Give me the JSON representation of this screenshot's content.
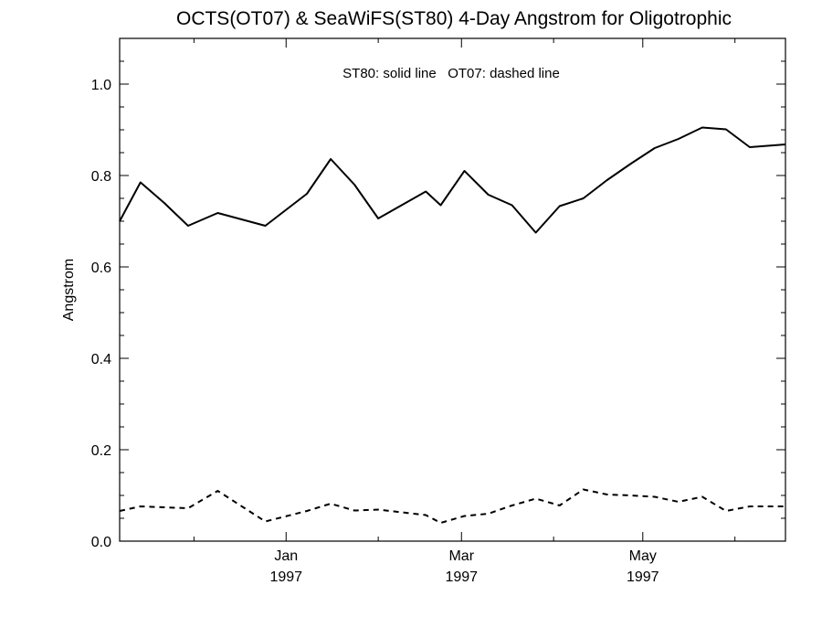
{
  "chart_data": {
    "type": "line",
    "title": "OCTS(OT07) & SeaWiFS(ST80) 4-Day Angstrom for Oligotrophic",
    "ylabel": "Angstrom",
    "xlabel": "",
    "annotation": "ST80: solid line   OT07: dashed line",
    "ylim": [
      0.0,
      1.1
    ],
    "xlim": [
      "1996-11-06",
      "1997-06-18"
    ],
    "yticks": [
      0.0,
      0.2,
      0.4,
      0.6,
      0.8,
      1.0
    ],
    "ytick_labels": [
      "0.0",
      "0.2",
      "0.4",
      "0.6",
      "0.8",
      "1.0"
    ],
    "xticks": [
      {
        "date": "1997-01-01",
        "month": "Jan",
        "year": "1997"
      },
      {
        "date": "1997-03-01",
        "month": "Mar",
        "year": "1997"
      },
      {
        "date": "1997-05-01",
        "month": "May",
        "year": "1997"
      }
    ],
    "grid": false,
    "series": [
      {
        "name": "ST80",
        "style": "solid",
        "color": "#000000",
        "points": [
          {
            "x": "1996-11-06",
            "y": 0.7
          },
          {
            "x": "1996-11-13",
            "y": 0.785
          },
          {
            "x": "1996-11-21",
            "y": 0.74
          },
          {
            "x": "1996-11-29",
            "y": 0.69
          },
          {
            "x": "1996-12-09",
            "y": 0.718
          },
          {
            "x": "1996-12-25",
            "y": 0.69
          },
          {
            "x": "1997-01-08",
            "y": 0.76
          },
          {
            "x": "1997-01-16",
            "y": 0.836
          },
          {
            "x": "1997-01-24",
            "y": 0.78
          },
          {
            "x": "1997-02-01",
            "y": 0.706
          },
          {
            "x": "1997-02-17",
            "y": 0.765
          },
          {
            "x": "1997-02-22",
            "y": 0.735
          },
          {
            "x": "1997-03-02",
            "y": 0.81
          },
          {
            "x": "1997-03-10",
            "y": 0.758
          },
          {
            "x": "1997-03-18",
            "y": 0.735
          },
          {
            "x": "1997-03-26",
            "y": 0.675
          },
          {
            "x": "1997-04-03",
            "y": 0.733
          },
          {
            "x": "1997-04-11",
            "y": 0.75
          },
          {
            "x": "1997-04-19",
            "y": 0.79
          },
          {
            "x": "1997-04-27",
            "y": 0.826
          },
          {
            "x": "1997-05-05",
            "y": 0.86
          },
          {
            "x": "1997-05-13",
            "y": 0.88
          },
          {
            "x": "1997-05-21",
            "y": 0.905
          },
          {
            "x": "1997-05-29",
            "y": 0.901
          },
          {
            "x": "1997-06-06",
            "y": 0.862
          },
          {
            "x": "1997-06-18",
            "y": 0.868
          }
        ]
      },
      {
        "name": "OT07",
        "style": "dashed",
        "color": "#000000",
        "points": [
          {
            "x": "1996-11-06",
            "y": 0.066
          },
          {
            "x": "1996-11-13",
            "y": 0.076
          },
          {
            "x": "1996-11-29",
            "y": 0.072
          },
          {
            "x": "1996-12-09",
            "y": 0.11
          },
          {
            "x": "1996-12-25",
            "y": 0.043
          },
          {
            "x": "1997-01-08",
            "y": 0.066
          },
          {
            "x": "1997-01-16",
            "y": 0.082
          },
          {
            "x": "1997-01-24",
            "y": 0.067
          },
          {
            "x": "1997-02-01",
            "y": 0.069
          },
          {
            "x": "1997-02-17",
            "y": 0.057
          },
          {
            "x": "1997-02-22",
            "y": 0.04
          },
          {
            "x": "1997-03-02",
            "y": 0.055
          },
          {
            "x": "1997-03-10",
            "y": 0.06
          },
          {
            "x": "1997-03-18",
            "y": 0.078
          },
          {
            "x": "1997-03-26",
            "y": 0.093
          },
          {
            "x": "1997-04-03",
            "y": 0.078
          },
          {
            "x": "1997-04-11",
            "y": 0.113
          },
          {
            "x": "1997-04-19",
            "y": 0.102
          },
          {
            "x": "1997-04-27",
            "y": 0.1
          },
          {
            "x": "1997-05-05",
            "y": 0.097
          },
          {
            "x": "1997-05-13",
            "y": 0.086
          },
          {
            "x": "1997-05-21",
            "y": 0.097
          },
          {
            "x": "1997-05-29",
            "y": 0.066
          },
          {
            "x": "1997-06-06",
            "y": 0.076
          },
          {
            "x": "1997-06-18",
            "y": 0.076
          }
        ]
      }
    ]
  }
}
